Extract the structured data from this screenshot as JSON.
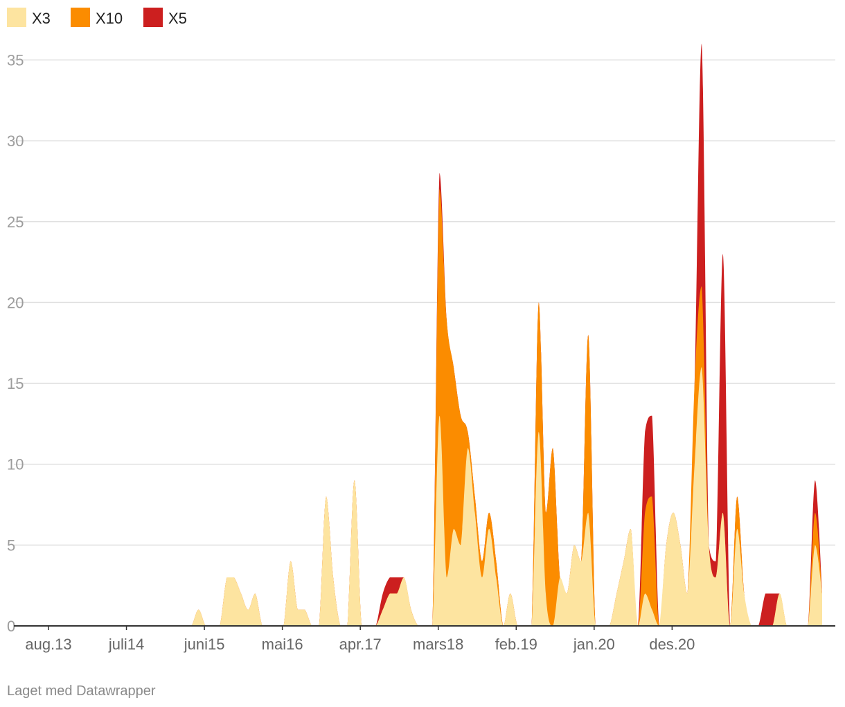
{
  "chart_data": {
    "type": "area",
    "stacked": true,
    "legend_position": "top-left",
    "grid": true,
    "ylim": [
      0,
      36
    ],
    "yticks": [
      0,
      5,
      10,
      15,
      20,
      25,
      30,
      35
    ],
    "x_range": [
      0,
      108
    ],
    "xticks": [
      {
        "x": 0,
        "label": "aug.13"
      },
      {
        "x": 11,
        "label": "juli14"
      },
      {
        "x": 22,
        "label": "juni15"
      },
      {
        "x": 33,
        "label": "mai16"
      },
      {
        "x": 44,
        "label": "apr.17"
      },
      {
        "x": 55,
        "label": "mars18"
      },
      {
        "x": 66,
        "label": "feb.19"
      },
      {
        "x": 77,
        "label": "jan.20"
      },
      {
        "x": 88,
        "label": "des.20"
      }
    ],
    "x": [
      0,
      1,
      2,
      3,
      4,
      5,
      6,
      7,
      8,
      9,
      10,
      11,
      12,
      13,
      14,
      15,
      16,
      17,
      18,
      19,
      20,
      21,
      22,
      23,
      24,
      25,
      26,
      27,
      28,
      29,
      30,
      31,
      32,
      33,
      34,
      35,
      36,
      37,
      38,
      39,
      40,
      41,
      42,
      43,
      44,
      45,
      46,
      47,
      48,
      49,
      50,
      51,
      52,
      53,
      54,
      55,
      56,
      57,
      58,
      59,
      60,
      61,
      62,
      63,
      64,
      65,
      66,
      67,
      68,
      69,
      70,
      71,
      72,
      73,
      74,
      75,
      76,
      77,
      78,
      79,
      80,
      81,
      82,
      83,
      84,
      85,
      86,
      87,
      88,
      89,
      90,
      91,
      92,
      93,
      94,
      95,
      96,
      97,
      98,
      99,
      100,
      101,
      102,
      103,
      104,
      105,
      106,
      107,
      108
    ],
    "series": [
      {
        "name": "X3",
        "color": "#fde4a0",
        "values": [
          0,
          0,
          0,
          0,
          0,
          0,
          0,
          0,
          0,
          0,
          0,
          0,
          0,
          0,
          0,
          0,
          0,
          0,
          0,
          0,
          1,
          0,
          0,
          0,
          3,
          3,
          2,
          1,
          2,
          0,
          0,
          0,
          0,
          4,
          1,
          1,
          0,
          0,
          8,
          3,
          0,
          0,
          9,
          0,
          0,
          0,
          1,
          2,
          2,
          3,
          1,
          0,
          0,
          0,
          13,
          3,
          6,
          5,
          11,
          7,
          3,
          6,
          3,
          0,
          2,
          0,
          0,
          0,
          12,
          2,
          0,
          3,
          2,
          5,
          4,
          7,
          0,
          0,
          0,
          2,
          4,
          6,
          0,
          2,
          1,
          0,
          5,
          7,
          5,
          2,
          10,
          16,
          5,
          3,
          7,
          0,
          6,
          2,
          0,
          0,
          0,
          0,
          2,
          0,
          0,
          0,
          0,
          5,
          2
        ]
      },
      {
        "name": "X10",
        "color": "#fb8c00",
        "values": [
          0,
          0,
          0,
          0,
          0,
          0,
          0,
          0,
          0,
          0,
          0,
          0,
          0,
          0,
          0,
          0,
          0,
          0,
          0,
          0,
          0,
          0,
          0,
          0,
          0,
          0,
          0,
          0,
          0,
          0,
          0,
          0,
          0,
          0,
          0,
          0,
          0,
          0,
          0,
          0,
          0,
          0,
          0,
          0,
          0,
          0,
          0,
          0,
          0,
          0,
          0,
          0,
          0,
          0,
          14,
          16,
          10,
          8,
          1,
          1,
          1,
          1,
          1,
          0,
          0,
          0,
          0,
          0,
          8,
          5,
          11,
          0,
          0,
          0,
          0,
          11,
          0,
          0,
          0,
          0,
          0,
          0,
          0,
          5,
          7,
          0,
          0,
          0,
          0,
          0,
          5,
          5,
          0,
          0,
          0,
          0,
          2,
          0,
          0,
          0,
          0,
          0,
          0,
          0,
          0,
          0,
          0,
          2,
          0
        ]
      },
      {
        "name": "X5",
        "color": "#cc1f1f",
        "values": [
          0,
          0,
          0,
          0,
          0,
          0,
          0,
          0,
          0,
          0,
          0,
          0,
          0,
          0,
          0,
          0,
          0,
          0,
          0,
          0,
          0,
          0,
          0,
          0,
          0,
          0,
          0,
          0,
          0,
          0,
          0,
          0,
          0,
          0,
          0,
          0,
          0,
          0,
          0,
          0,
          0,
          0,
          0,
          0,
          0,
          0,
          1,
          1,
          1,
          0,
          0,
          0,
          0,
          0,
          1,
          0,
          0,
          0,
          0,
          0,
          0,
          0,
          0,
          0,
          0,
          0,
          0,
          0,
          0,
          0,
          0,
          0,
          0,
          0,
          0,
          0,
          0,
          0,
          0,
          0,
          0,
          0,
          0,
          5,
          5,
          0,
          0,
          0,
          0,
          0,
          0,
          15,
          0,
          1,
          16,
          0,
          0,
          0,
          0,
          0,
          2,
          2,
          0,
          0,
          0,
          0,
          0,
          2,
          0
        ]
      }
    ]
  },
  "legend": {
    "items": [
      {
        "label": "X3",
        "color": "#fde4a0"
      },
      {
        "label": "X10",
        "color": "#fb8c00"
      },
      {
        "label": "X5",
        "color": "#cc1f1f"
      }
    ]
  },
  "footer": {
    "credit": "Laget med Datawrapper"
  }
}
